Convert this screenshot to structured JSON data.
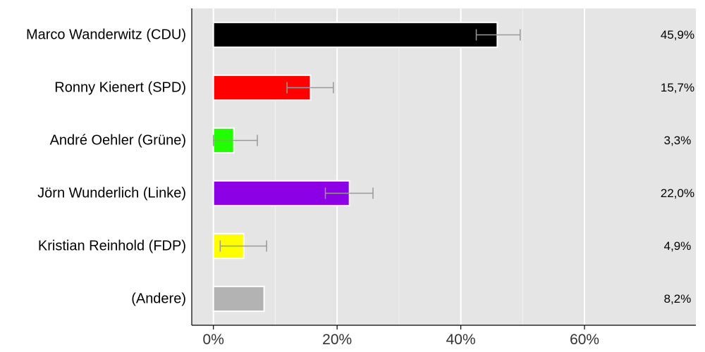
{
  "chart_data": {
    "type": "bar",
    "orientation": "horizontal",
    "categories": [
      "Marco Wanderwitz (CDU)",
      "Ronny Kienert (SPD)",
      "André Oehler (Grüne)",
      "Jörn Wunderlich (Linke)",
      "Kristian Reinhold (FDP)",
      "(Andere)"
    ],
    "values": [
      45.9,
      15.7,
      3.3,
      22.0,
      4.9,
      8.2
    ],
    "value_labels": [
      "45,9%",
      "15,7%",
      "3,3%",
      "22,0%",
      "4,9%",
      "8,2%"
    ],
    "error_low": [
      42.5,
      11.9,
      0.0,
      18.1,
      1.1,
      null
    ],
    "error_high": [
      49.6,
      19.4,
      7.1,
      25.8,
      8.6,
      null
    ],
    "colors": [
      "#000000",
      "#ff0000",
      "#22ff00",
      "#8c00e6",
      "#ffff00",
      "#b3b3b3"
    ],
    "xlim": [
      -3.5,
      78
    ],
    "xticks": [
      0,
      20,
      40,
      60
    ],
    "xtick_labels": [
      "0%",
      "20%",
      "40%",
      "60%"
    ],
    "grid": true,
    "panel_background": "#e5e5e5",
    "error_bar_color": "#999999",
    "title": "",
    "xlabel": "",
    "ylabel": ""
  }
}
